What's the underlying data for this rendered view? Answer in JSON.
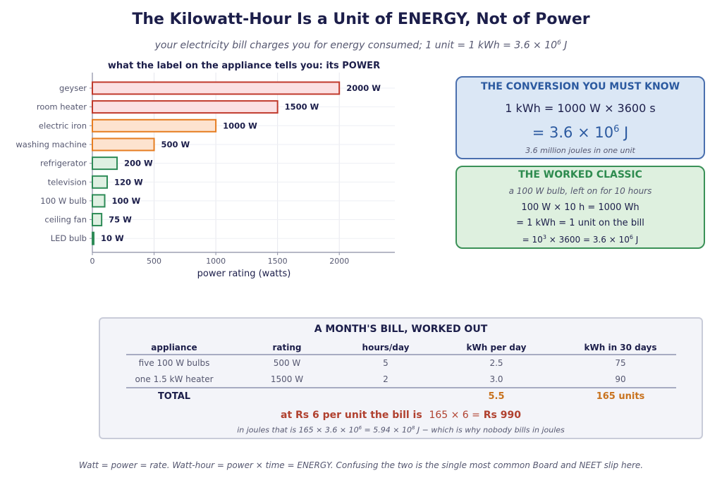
{
  "header": {
    "title": "The Kilowatt-Hour Is a Unit of ENERGY, Not of Power",
    "subtitle_prefix": "your electricity bill charges you for energy consumed;  1 unit  =  1 kWh  = 3.6 × 10",
    "subtitle_exp": "6",
    "subtitle_suffix": " J"
  },
  "chart_data": {
    "type": "bar",
    "orientation": "horizontal",
    "title": "what the label on the appliance tells you: its POWER",
    "xlabel": "power rating   (watts)",
    "ylabel": "",
    "xlim": [
      0,
      2450
    ],
    "xticks": [
      0,
      500,
      1000,
      1500,
      2000
    ],
    "grid": true,
    "categories": [
      "geyser",
      "room heater",
      "electric iron",
      "washing machine",
      "refrigerator",
      "television",
      "100 W bulb",
      "ceiling fan",
      "LED bulb"
    ],
    "values": [
      2000,
      1500,
      1000,
      500,
      200,
      120,
      100,
      75,
      10
    ],
    "value_labels": [
      "2000 W",
      "1500 W",
      "1000 W",
      "500 W",
      "200 W",
      "120 W",
      "100 W",
      "75 W",
      "10 W"
    ],
    "colors": {
      "high": {
        "fill": "#fbe0e2",
        "stroke": "#c0392b"
      },
      "medium": {
        "fill": "#fde3cf",
        "stroke": "#e67e22"
      },
      "low": {
        "fill": "#dff0e2",
        "stroke": "#2e8b57"
      }
    },
    "bar_levels": [
      "high",
      "high",
      "medium",
      "medium",
      "low",
      "low",
      "low",
      "low",
      "low"
    ]
  },
  "conversion_card": {
    "title": "THE CONVERSION YOU MUST KNOW",
    "line1": "1 kWh = 1000 W × 3600 s",
    "line2_prefix": "= 3.6 × 10",
    "line2_exp": "6",
    "line2_suffix": " J",
    "note": "3.6 million joules in one unit"
  },
  "worked_card": {
    "title": "THE WORKED CLASSIC",
    "line1": "a 100 W bulb, left on for 10 hours",
    "line2": "100 W × 10 h = 1000 Wh",
    "line3": "= 1 kWh = 1 unit on the bill",
    "line4_a": "= 10",
    "line4_exp1": "3",
    "line4_b": " × 3600 = 3.6 × 10",
    "line4_exp2": "6",
    "line4_c": " J"
  },
  "bill": {
    "title": "A MONTH'S BILL, WORKED OUT",
    "headers": [
      "appliance",
      "rating",
      "hours/day",
      "kWh per day",
      "kWh in 30 days"
    ],
    "rows": [
      [
        "five 100 W bulbs",
        "500 W",
        "5",
        "2.5",
        "75"
      ],
      [
        "one 1.5 kW heater",
        "1500 W",
        "2",
        "3.0",
        "90"
      ]
    ],
    "total_label": "TOTAL",
    "total_kwh_day": "5.5",
    "total_units": "165 units",
    "cost_prefix": "at Rs 6 per unit the bill is",
    "cost_math": "165 × 6 =",
    "cost_value": "Rs 990",
    "joules_a": "in joules that is 165 × 3.6 × 10",
    "joules_exp1": "6",
    "joules_b": " = 5.94 × 10",
    "joules_exp2": "8",
    "joules_c": " J  −  which is why nobody bills in joules"
  },
  "footer": {
    "note": "Watt = power = rate.  Watt-hour = power × time = ENERGY.  Confusing the two is the single most common Board and NEET slip here."
  }
}
